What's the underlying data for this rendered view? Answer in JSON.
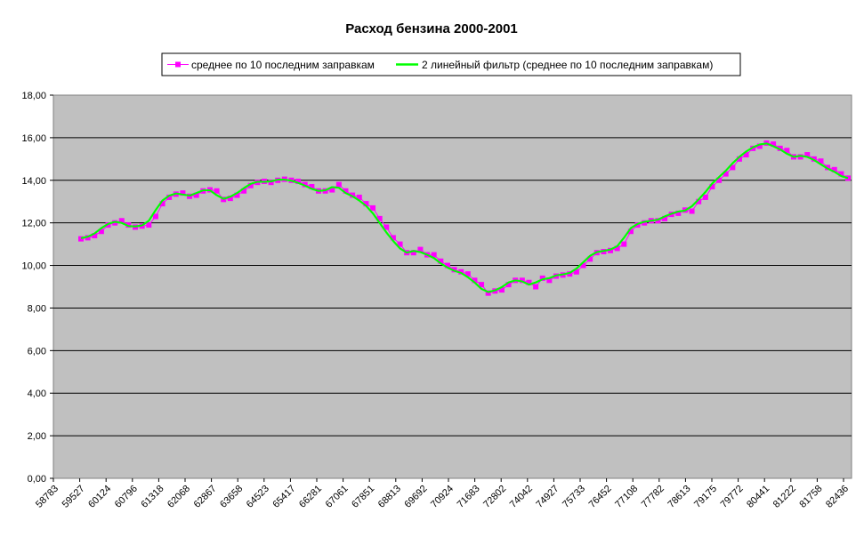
{
  "chart_data": {
    "type": "line",
    "title": "Расход бензина 2000-2001",
    "xlabel": "",
    "ylabel": "",
    "ylim": [
      0,
      18
    ],
    "y_ticks": [
      "0,00",
      "2,00",
      "4,00",
      "6,00",
      "8,00",
      "10,00",
      "12,00",
      "14,00",
      "16,00",
      "18,00"
    ],
    "x_tick_labels": [
      "58783",
      "59527",
      "60124",
      "60796",
      "61318",
      "62068",
      "62867",
      "63658",
      "64523",
      "65417",
      "66281",
      "67061",
      "67851",
      "68813",
      "69692",
      "70924",
      "71683",
      "72802",
      "74042",
      "74927",
      "75733",
      "76452",
      "77108",
      "77782",
      "78613",
      "79175",
      "79772",
      "80441",
      "81222",
      "81758",
      "82436"
    ],
    "grid": "horizontal",
    "legend_position": "top",
    "colors": {
      "plot_background": "#c0c0c0",
      "series_1": "#ff00ff",
      "series_2": "#00ff00",
      "gridline": "#000000"
    },
    "series": [
      {
        "name": "среднее по 10 последним заправкам",
        "marker": "square",
        "values": [
          11.25,
          11.3,
          11.4,
          11.6,
          11.9,
          12.0,
          12.1,
          11.9,
          11.8,
          11.85,
          11.9,
          12.3,
          12.9,
          13.2,
          13.35,
          13.4,
          13.25,
          13.3,
          13.5,
          13.55,
          13.5,
          13.1,
          13.15,
          13.3,
          13.5,
          13.75,
          13.9,
          13.95,
          13.9,
          14.0,
          14.05,
          14.0,
          13.95,
          13.8,
          13.7,
          13.5,
          13.5,
          13.55,
          13.8,
          13.5,
          13.3,
          13.2,
          12.9,
          12.7,
          12.2,
          11.8,
          11.3,
          11.0,
          10.6,
          10.6,
          10.75,
          10.5,
          10.5,
          10.2,
          10.0,
          9.8,
          9.7,
          9.6,
          9.3,
          9.1,
          8.7,
          8.8,
          8.85,
          9.1,
          9.3,
          9.3,
          9.2,
          9.0,
          9.4,
          9.3,
          9.5,
          9.55,
          9.6,
          9.7,
          10.0,
          10.3,
          10.6,
          10.65,
          10.7,
          10.8,
          11.0,
          11.6,
          11.9,
          12.0,
          12.1,
          12.1,
          12.2,
          12.4,
          12.45,
          12.6,
          12.55,
          13.0,
          13.2,
          13.7,
          14.0,
          14.3,
          14.6,
          15.0,
          15.2,
          15.5,
          15.6,
          15.75,
          15.7,
          15.5,
          15.4,
          15.1,
          15.1,
          15.2,
          15.0,
          14.9,
          14.6,
          14.5,
          14.3,
          14.1
        ]
      },
      {
        "name": "2 линейный фильтр (среднее по 10 последним заправкам)",
        "marker": "none",
        "values": [
          11.28,
          11.35,
          11.5,
          11.75,
          11.95,
          12.05,
          12.0,
          11.85,
          11.83,
          11.88,
          12.1,
          12.6,
          13.05,
          13.28,
          13.38,
          13.33,
          13.28,
          13.4,
          13.53,
          13.53,
          13.3,
          13.13,
          13.23,
          13.4,
          13.63,
          13.83,
          13.93,
          13.93,
          13.95,
          14.03,
          14.03,
          13.98,
          13.88,
          13.75,
          13.6,
          13.5,
          13.53,
          13.68,
          13.65,
          13.4,
          13.25,
          13.05,
          12.8,
          12.45,
          12.0,
          11.55,
          11.15,
          10.8,
          10.6,
          10.68,
          10.63,
          10.5,
          10.35,
          10.1,
          9.9,
          9.75,
          9.65,
          9.45,
          9.2,
          8.9,
          8.75,
          8.83,
          8.98,
          9.2,
          9.3,
          9.25,
          9.1,
          9.2,
          9.35,
          9.4,
          9.53,
          9.58,
          9.65,
          9.85,
          10.15,
          10.45,
          10.63,
          10.68,
          10.75,
          10.9,
          11.3,
          11.75,
          11.95,
          12.05,
          12.1,
          12.15,
          12.3,
          12.43,
          12.53,
          12.58,
          12.78,
          13.1,
          13.45,
          13.85,
          14.15,
          14.45,
          14.8,
          15.1,
          15.35,
          15.55,
          15.68,
          15.73,
          15.6,
          15.45,
          15.25,
          15.1,
          15.15,
          15.1,
          14.95,
          14.75,
          14.55,
          14.4,
          14.2,
          14.1
        ]
      }
    ]
  }
}
